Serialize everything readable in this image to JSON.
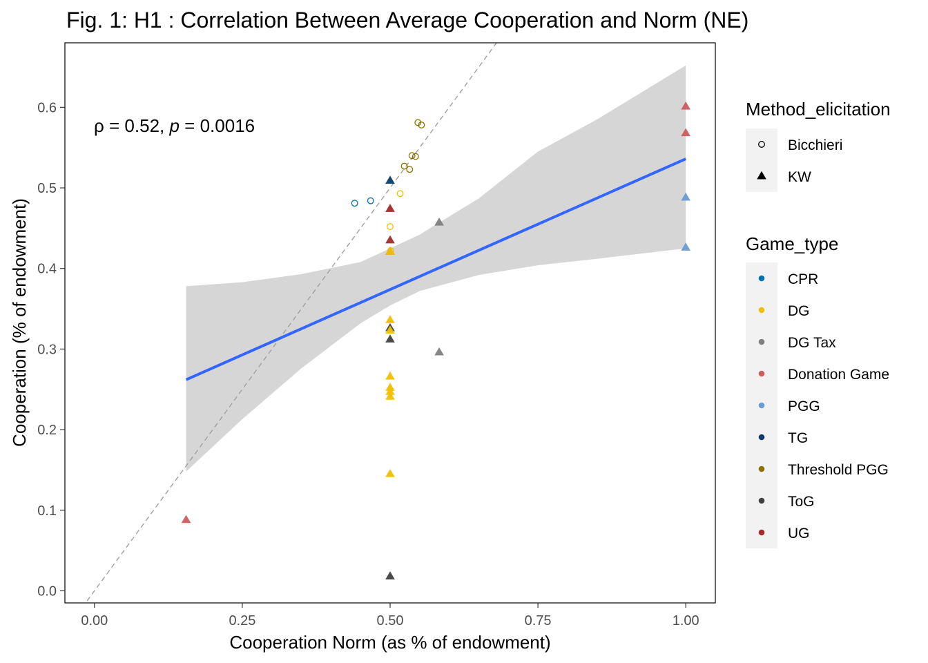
{
  "chart_data": {
    "type": "scatter",
    "title": "Fig. 1: H1 : Correlation Between Average Cooperation and Norm (NE)",
    "xlabel": "Cooperation Norm (as % of endowment)",
    "ylabel": "Cooperation (% of endowment)",
    "xlim": [
      -0.05,
      1.05
    ],
    "ylim": [
      -0.015,
      0.68
    ],
    "x_ticks": [
      "0.00",
      "0.25",
      "0.50",
      "0.75",
      "1.00"
    ],
    "x_tick_values": [
      0,
      0.25,
      0.5,
      0.75,
      1.0
    ],
    "y_ticks": [
      "0.0",
      "0.1",
      "0.2",
      "0.3",
      "0.4",
      "0.5",
      "0.6"
    ],
    "y_tick_values": [
      0,
      0.1,
      0.2,
      0.3,
      0.4,
      0.5,
      0.6
    ],
    "grid": false,
    "legend_position": "right",
    "annotation": {
      "rho": "ρ",
      "rho_text": " = 0.52, ",
      "p": "p",
      "p_text": " = 0.0016"
    },
    "reference_line": {
      "style": "dashed",
      "slope": 1,
      "intercept": 0,
      "color": "#a0a0a0"
    },
    "regression": {
      "color": "#3366ff",
      "x_start": 0.155,
      "y_start": 0.262,
      "x_end": 1.0,
      "y_end": 0.536,
      "band_color": "#d6d6d6",
      "band": [
        {
          "x": 0.155,
          "lo": 0.148,
          "hi": 0.378
        },
        {
          "x": 0.25,
          "lo": 0.213,
          "hi": 0.383
        },
        {
          "x": 0.35,
          "lo": 0.276,
          "hi": 0.393
        },
        {
          "x": 0.45,
          "lo": 0.332,
          "hi": 0.408
        },
        {
          "x": 0.5,
          "lo": 0.354,
          "hi": 0.425
        },
        {
          "x": 0.55,
          "lo": 0.372,
          "hi": 0.442
        },
        {
          "x": 0.65,
          "lo": 0.392,
          "hi": 0.487
        },
        {
          "x": 0.75,
          "lo": 0.404,
          "hi": 0.545
        },
        {
          "x": 0.85,
          "lo": 0.412,
          "hi": 0.585
        },
        {
          "x": 1.0,
          "lo": 0.425,
          "hi": 0.652
        }
      ]
    },
    "legend": {
      "method_title": "Method_elicitation",
      "methods": [
        {
          "name": "Bicchieri",
          "shape": "circle"
        },
        {
          "name": "KW",
          "shape": "triangle"
        }
      ],
      "game_title": "Game_type",
      "games": [
        {
          "name": "CPR",
          "color": "#0072B2"
        },
        {
          "name": "DG",
          "color": "#F0C000"
        },
        {
          "name": "DG Tax",
          "color": "#808080"
        },
        {
          "name": "Donation Game",
          "color": "#CD5C5C"
        },
        {
          "name": "PGG",
          "color": "#6B9BD2"
        },
        {
          "name": "TG",
          "color": "#0A3D6B"
        },
        {
          "name": "Threshold PGG",
          "color": "#8B7000"
        },
        {
          "name": "ToG",
          "color": "#404040"
        },
        {
          "name": "UG",
          "color": "#A52A2A"
        }
      ]
    },
    "points": [
      {
        "x": 0.44,
        "y": 0.481,
        "method": "Bicchieri",
        "game": "CPR"
      },
      {
        "x": 0.467,
        "y": 0.484,
        "method": "Bicchieri",
        "game": "CPR"
      },
      {
        "x": 0.5,
        "y": 0.452,
        "method": "Bicchieri",
        "game": "DG"
      },
      {
        "x": 0.501,
        "y": 0.422,
        "method": "Bicchieri",
        "game": "DG"
      },
      {
        "x": 0.517,
        "y": 0.493,
        "method": "Bicchieri",
        "game": "DG"
      },
      {
        "x": 0.524,
        "y": 0.527,
        "method": "Bicchieri",
        "game": "Threshold PGG"
      },
      {
        "x": 0.533,
        "y": 0.523,
        "method": "Bicchieri",
        "game": "Threshold PGG"
      },
      {
        "x": 0.537,
        "y": 0.54,
        "method": "Bicchieri",
        "game": "Threshold PGG"
      },
      {
        "x": 0.543,
        "y": 0.539,
        "method": "Bicchieri",
        "game": "Threshold PGG"
      },
      {
        "x": 0.547,
        "y": 0.581,
        "method": "Bicchieri",
        "game": "Threshold PGG"
      },
      {
        "x": 0.553,
        "y": 0.578,
        "method": "Bicchieri",
        "game": "Threshold PGG"
      },
      {
        "x": 0.155,
        "y": 0.088,
        "method": "KW",
        "game": "Donation Game"
      },
      {
        "x": 0.5,
        "y": 0.509,
        "method": "KW",
        "game": "TG"
      },
      {
        "x": 0.5,
        "y": 0.474,
        "method": "KW",
        "game": "UG"
      },
      {
        "x": 0.5,
        "y": 0.435,
        "method": "KW",
        "game": "UG"
      },
      {
        "x": 0.5,
        "y": 0.421,
        "method": "KW",
        "game": "Donation Game"
      },
      {
        "x": 0.5,
        "y": 0.421,
        "method": "KW",
        "game": "DG"
      },
      {
        "x": 0.5,
        "y": 0.336,
        "method": "KW",
        "game": "DG"
      },
      {
        "x": 0.5,
        "y": 0.326,
        "method": "KW",
        "game": "ToG"
      },
      {
        "x": 0.5,
        "y": 0.323,
        "method": "KW",
        "game": "DG"
      },
      {
        "x": 0.5,
        "y": 0.312,
        "method": "KW",
        "game": "ToG"
      },
      {
        "x": 0.5,
        "y": 0.266,
        "method": "KW",
        "game": "DG"
      },
      {
        "x": 0.5,
        "y": 0.252,
        "method": "KW",
        "game": "DG"
      },
      {
        "x": 0.5,
        "y": 0.247,
        "method": "KW",
        "game": "DG"
      },
      {
        "x": 0.5,
        "y": 0.241,
        "method": "KW",
        "game": "DG"
      },
      {
        "x": 0.5,
        "y": 0.145,
        "method": "KW",
        "game": "DG"
      },
      {
        "x": 0.5,
        "y": 0.018,
        "method": "KW",
        "game": "ToG"
      },
      {
        "x": 0.583,
        "y": 0.457,
        "method": "KW",
        "game": "DG Tax"
      },
      {
        "x": 0.583,
        "y": 0.296,
        "method": "KW",
        "game": "DG Tax"
      },
      {
        "x": 1.0,
        "y": 0.601,
        "method": "KW",
        "game": "Donation Game"
      },
      {
        "x": 1.0,
        "y": 0.568,
        "method": "KW",
        "game": "Donation Game"
      },
      {
        "x": 1.0,
        "y": 0.488,
        "method": "KW",
        "game": "PGG"
      },
      {
        "x": 1.0,
        "y": 0.426,
        "method": "KW",
        "game": "PGG"
      }
    ]
  }
}
